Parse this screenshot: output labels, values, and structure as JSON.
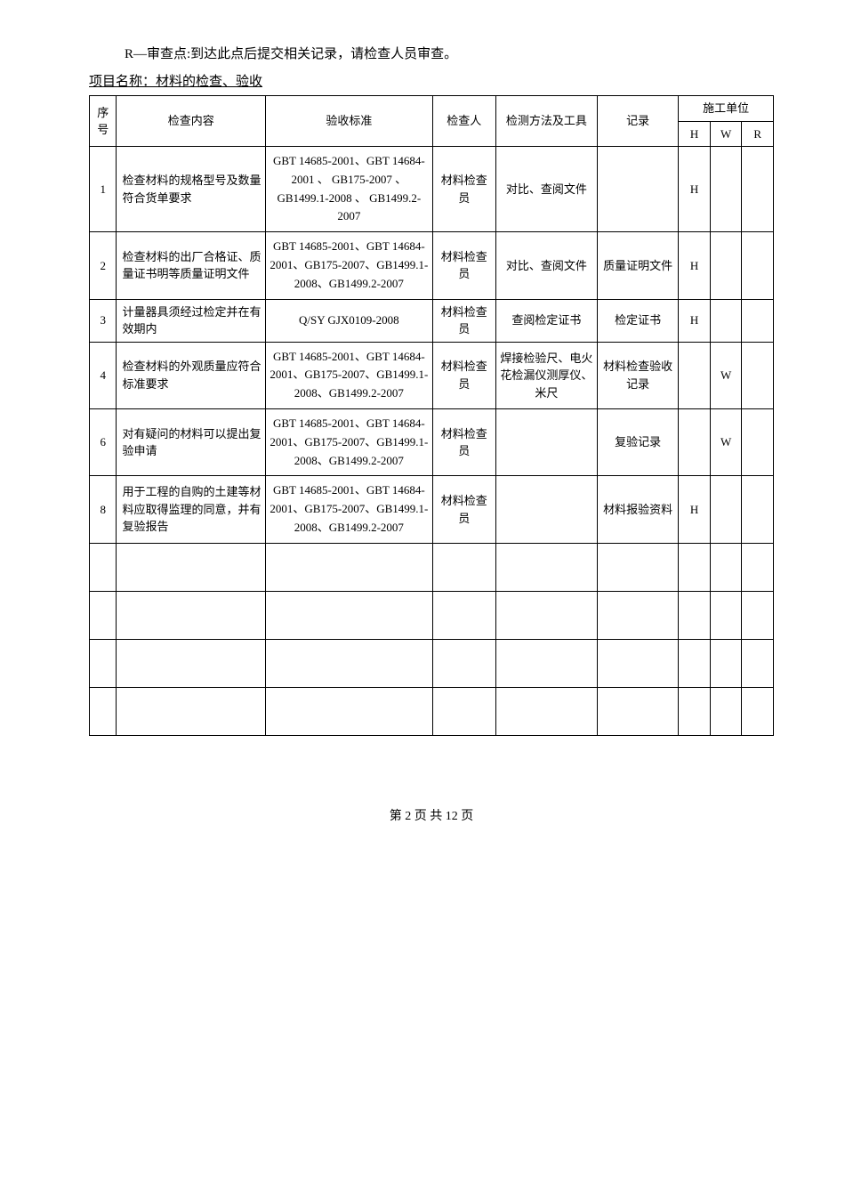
{
  "intro": "R—审查点:到达此点后提交相关记录，请检查人员审查。",
  "projectLabel": "项目名称：材料的检查、验收",
  "header": {
    "seq": "序号",
    "content": "检查内容",
    "standard": "验收标准",
    "inspector": "检查人",
    "method": "检测方法及工具",
    "record": "记录",
    "unit": "施工单位",
    "H": "H",
    "W": "W",
    "R": "R"
  },
  "rows": [
    {
      "seq": "1",
      "content": "检查材料的规格型号及数量符合货单要求",
      "standard": "GBT 14685-2001、GBT 14684-2001 、 GB175-2007 、 GB1499.1-2008 、 GB1499.2-2007",
      "inspector": "材料检查员",
      "method": "对比、查阅文件",
      "record": "",
      "H": "H",
      "W": "",
      "R": ""
    },
    {
      "seq": "2",
      "content": "检查材料的出厂合格证、质量证书明等质量证明文件",
      "standard": "GBT 14685-2001、GBT 14684-2001、GB175-2007、GB1499.1-2008、GB1499.2-2007",
      "inspector": "材料检查员",
      "method": "对比、查阅文件",
      "record": "质量证明文件",
      "H": "H",
      "W": "",
      "R": ""
    },
    {
      "seq": "3",
      "content": "计量器具须经过检定并在有效期内",
      "standard": "Q/SY GJX0109-2008",
      "inspector": "材料检查员",
      "method": "查阅检定证书",
      "record": "检定证书",
      "H": "H",
      "W": "",
      "R": ""
    },
    {
      "seq": "4",
      "content": "检查材料的外观质量应符合标准要求",
      "standard": "GBT 14685-2001、GBT 14684-2001、GB175-2007、GB1499.1-2008、GB1499.2-2007",
      "inspector": "材料检查员",
      "method": "焊接检验尺、电火花检漏仪测厚仪、米尺",
      "record": "材料检查验收记录",
      "H": "",
      "W": "W",
      "R": ""
    },
    {
      "seq": "6",
      "content": "对有疑问的材料可以提出复验申请",
      "standard": "GBT 14685-2001、GBT 14684-2001、GB175-2007、GB1499.1-2008、GB1499.2-2007",
      "inspector": "材料检查员",
      "method": "",
      "record": "复验记录",
      "H": "",
      "W": "W",
      "R": ""
    },
    {
      "seq": "8",
      "content": "用于工程的自购的土建等材料应取得监理的同意，并有复验报告",
      "standard": "GBT 14685-2001、GBT 14684-2001、GB175-2007、GB1499.1-2008、GB1499.2-2007",
      "inspector": "材料检查员",
      "method": "",
      "record": "材料报验资料",
      "H": "H",
      "W": "",
      "R": ""
    }
  ],
  "emptyRows": 4,
  "footer": "第 2 页 共 12 页"
}
